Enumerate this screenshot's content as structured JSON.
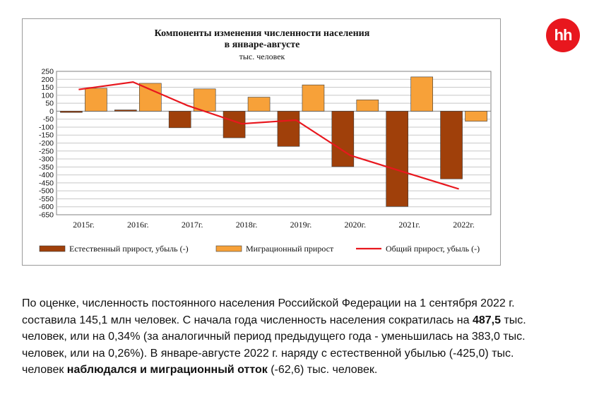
{
  "logo": {
    "text": "hh",
    "color": "#e8171e"
  },
  "chart_data": {
    "type": "bar",
    "title_line1": "Компоненты изменения численности населения",
    "title_line2": "в январе-августе",
    "unit": "тыс. человек",
    "categories": [
      "2015г.",
      "2016г.",
      "2017г.",
      "2018г.",
      "2019г.",
      "2020г.",
      "2021г.",
      "2022г."
    ],
    "ylim": [
      -650,
      250
    ],
    "yticks": [
      250,
      200,
      150,
      100,
      50,
      0,
      -50,
      -100,
      -150,
      -200,
      -250,
      -300,
      -350,
      -400,
      -450,
      -500,
      -550,
      -600,
      -650
    ],
    "grid": true,
    "legend_position": "bottom",
    "series": [
      {
        "name": "Естественный прирост, убыль (-)",
        "kind": "bar",
        "color": "#a0400a",
        "values": [
          -8,
          8,
          -104,
          -167,
          -221,
          -348,
          -598,
          -425
        ]
      },
      {
        "name": "Миграционный прирост",
        "kind": "bar",
        "color": "#f7a139",
        "values": [
          144,
          175,
          140,
          88,
          165,
          71,
          215,
          -63
        ]
      },
      {
        "name": "Общий прирост, убыль (-)",
        "kind": "line",
        "color": "#e8171e",
        "values": [
          136,
          183,
          36,
          -79,
          -56,
          -277,
          -383,
          -488
        ]
      }
    ]
  },
  "text": {
    "p1": "По оценке, численность постоянного населения Российской Федерации на 1 сентября 2022 г. составила 145,1 млн человек. С начала года численность населения сократилась на ",
    "p2": "487,5",
    "p3": " тыс. человек, или на 0,34% (за аналогичный период предыдущего года - уменьшилась на 383,0 тыс. человек, или на 0,26%). В январе-августе 2022 г. наряду с естественной убылью (-425,0) тыс. человек ",
    "p4": "наблюдался и миграционный отток",
    "p5": " (-62,6) тыс. человек."
  }
}
